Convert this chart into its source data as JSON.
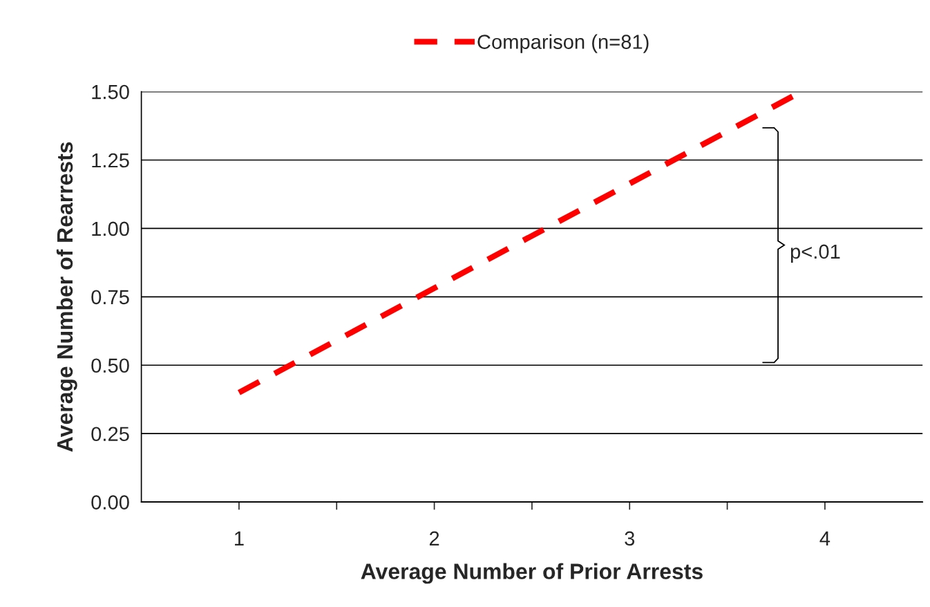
{
  "chart_data": {
    "type": "line",
    "xlabel": "Average Number of Prior Arrests",
    "ylabel": "Average Number of Rearrests",
    "x": [
      1,
      3.88
    ],
    "series": [
      {
        "name": "Comparison (n=81)",
        "color": "#ff0000",
        "values": [
          0.4,
          1.5
        ],
        "line_style": "dashed"
      }
    ],
    "xlim": [
      0.5,
      4.5
    ],
    "xticks": [
      1,
      {
        "value": 1.5,
        "label": null
      },
      2,
      {
        "value": 2.5,
        "label": null
      },
      3,
      {
        "value": 3.5,
        "label": null
      },
      4
    ],
    "ylim": [
      0,
      1.5
    ],
    "yticks": [
      {
        "value": 0,
        "label": "0.00"
      },
      {
        "value": 0.25,
        "label": "0.25"
      },
      {
        "value": 0.5,
        "label": "0.50"
      },
      {
        "value": 0.75,
        "label": "0.75"
      },
      {
        "value": 1,
        "label": "1.00"
      },
      {
        "value": 1.25,
        "label": "1.25"
      },
      {
        "value": 1.5,
        "label": "1.50"
      }
    ],
    "grid": "y",
    "legend": "top",
    "marker": "none",
    "annotations": [
      "p<.01"
    ]
  }
}
